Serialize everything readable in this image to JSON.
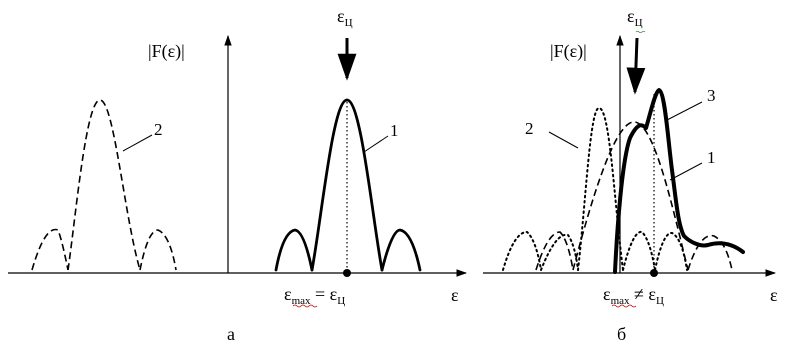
{
  "panel_a": {
    "y_label": "|F(ε)|",
    "arrow_label": "ε",
    "arrow_sub": "Ц",
    "curve1_label": "1",
    "curve2_label": "2",
    "eq_eps": "ε",
    "eq_sub_max": "max",
    "eq_op": " = ε",
    "eq_sub_c": "Ц",
    "x_label": "ε",
    "caption": "а"
  },
  "panel_b": {
    "y_label": "|F(ε)|",
    "arrow_label": "ε",
    "arrow_sub": "Ц",
    "curve1_label": "1",
    "curve2_label": "2",
    "curve3_label": "3",
    "eq_eps": "ε",
    "eq_sub_max": "max",
    "eq_op": " ≠ ε",
    "eq_sub_c": "Ц",
    "x_label": "ε",
    "caption": "б"
  }
}
